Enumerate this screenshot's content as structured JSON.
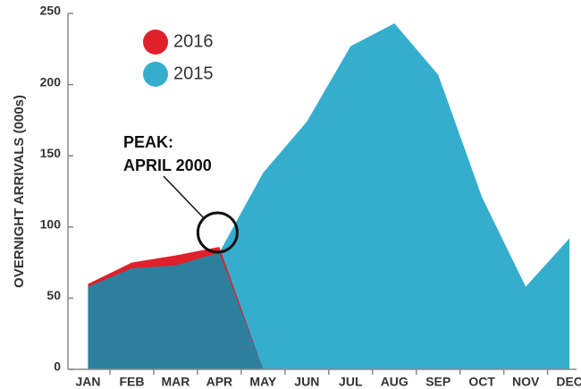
{
  "chart_data": {
    "type": "area",
    "y_label": "OVERNIGHT ARRIVALS (000s)",
    "categories": [
      "JAN",
      "FEB",
      "MAR",
      "APR",
      "MAY",
      "JUN",
      "JUL",
      "AUG",
      "SEP",
      "OCT",
      "NOV",
      "DEC"
    ],
    "series": [
      {
        "name": "2015",
        "color": "#35aece",
        "values": [
          58,
          71,
          73,
          82,
          138,
          174,
          227,
          243,
          207,
          121,
          58,
          92
        ]
      },
      {
        "name": "2016",
        "color": "#e0202a",
        "values": [
          60,
          75,
          80,
          86,
          null,
          null,
          null,
          null,
          null,
          null,
          null,
          null
        ]
      }
    ],
    "ylim": [
      0,
      250
    ],
    "yticks": [
      0,
      50,
      100,
      150,
      200,
      250
    ],
    "annotation": [
      "PEAK:",
      "APRIL 2000"
    ]
  }
}
